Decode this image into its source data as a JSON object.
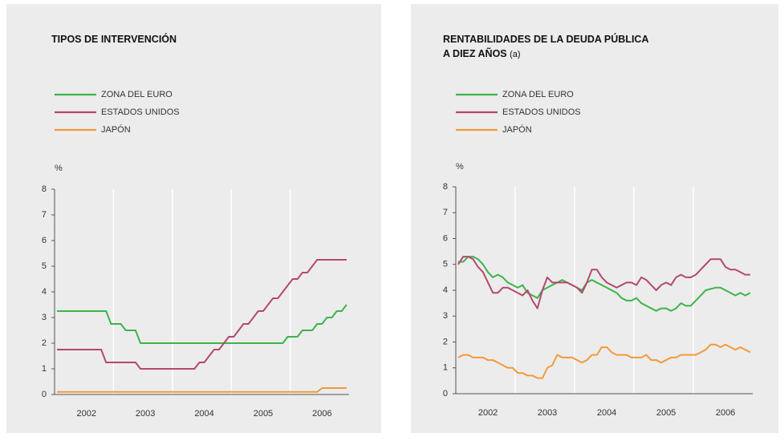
{
  "chart_data": [
    {
      "type": "line",
      "title": [
        "TIPOS DE INTERVENCIÓN"
      ],
      "y_label": "%",
      "categories": [
        null,
        null,
        null,
        null,
        null,
        null,
        "2002",
        null,
        null,
        null,
        null,
        null,
        null,
        null,
        null,
        null,
        null,
        null,
        "2003",
        null,
        null,
        null,
        null,
        null,
        null,
        null,
        null,
        null,
        null,
        null,
        "2004",
        null,
        null,
        null,
        null,
        null,
        null,
        null,
        null,
        null,
        null,
        null,
        "2005",
        null,
        null,
        null,
        null,
        null,
        null,
        null,
        null,
        null,
        null,
        null,
        "2006",
        null,
        null,
        null,
        null,
        null
      ],
      "ylim": [
        0,
        8
      ],
      "yticks": [
        0,
        1,
        2,
        3,
        4,
        5,
        6,
        7,
        8
      ],
      "series": [
        {
          "name": "ZONA DEL EURO",
          "color": "#3db44a",
          "values": [
            3.25,
            3.25,
            3.25,
            3.25,
            3.25,
            3.25,
            3.25,
            3.25,
            3.25,
            3.25,
            3.25,
            2.75,
            2.75,
            2.75,
            2.5,
            2.5,
            2.5,
            2.0,
            2.0,
            2.0,
            2.0,
            2.0,
            2.0,
            2.0,
            2.0,
            2.0,
            2.0,
            2.0,
            2.0,
            2.0,
            2.0,
            2.0,
            2.0,
            2.0,
            2.0,
            2.0,
            2.0,
            2.0,
            2.0,
            2.0,
            2.0,
            2.0,
            2.0,
            2.0,
            2.0,
            2.0,
            2.0,
            2.25,
            2.25,
            2.25,
            2.5,
            2.5,
            2.5,
            2.75,
            2.75,
            3.0,
            3.0,
            3.25,
            3.25,
            3.5
          ]
        },
        {
          "name": "ESTADOS UNIDOS",
          "color": "#b54770",
          "values": [
            1.75,
            1.75,
            1.75,
            1.75,
            1.75,
            1.75,
            1.75,
            1.75,
            1.75,
            1.75,
            1.25,
            1.25,
            1.25,
            1.25,
            1.25,
            1.25,
            1.25,
            1.0,
            1.0,
            1.0,
            1.0,
            1.0,
            1.0,
            1.0,
            1.0,
            1.0,
            1.0,
            1.0,
            1.0,
            1.25,
            1.25,
            1.5,
            1.75,
            1.75,
            2.0,
            2.25,
            2.25,
            2.5,
            2.75,
            2.75,
            3.0,
            3.25,
            3.25,
            3.5,
            3.75,
            3.75,
            4.0,
            4.25,
            4.5,
            4.5,
            4.75,
            4.75,
            5.0,
            5.25,
            5.25,
            5.25,
            5.25,
            5.25,
            5.25,
            5.25
          ]
        },
        {
          "name": "JAPÓN",
          "color": "#f39a3a",
          "values": [
            0.1,
            0.1,
            0.1,
            0.1,
            0.1,
            0.1,
            0.1,
            0.1,
            0.1,
            0.1,
            0.1,
            0.1,
            0.1,
            0.1,
            0.1,
            0.1,
            0.1,
            0.1,
            0.1,
            0.1,
            0.1,
            0.1,
            0.1,
            0.1,
            0.1,
            0.1,
            0.1,
            0.1,
            0.1,
            0.1,
            0.1,
            0.1,
            0.1,
            0.1,
            0.1,
            0.1,
            0.1,
            0.1,
            0.1,
            0.1,
            0.1,
            0.1,
            0.1,
            0.1,
            0.1,
            0.1,
            0.1,
            0.1,
            0.1,
            0.1,
            0.1,
            0.1,
            0.1,
            0.1,
            0.25,
            0.25,
            0.25,
            0.25,
            0.25,
            0.25
          ]
        }
      ]
    },
    {
      "type": "line",
      "title": [
        "RENTABILIDADES DE LA DEUDA PÚBLICA",
        "A DIEZ AÑOS"
      ],
      "title_note": "(a)",
      "y_label": "%",
      "categories": [
        null,
        null,
        null,
        null,
        null,
        null,
        "2002",
        null,
        null,
        null,
        null,
        null,
        null,
        null,
        null,
        null,
        null,
        null,
        "2003",
        null,
        null,
        null,
        null,
        null,
        null,
        null,
        null,
        null,
        null,
        null,
        "2004",
        null,
        null,
        null,
        null,
        null,
        null,
        null,
        null,
        null,
        null,
        null,
        "2005",
        null,
        null,
        null,
        null,
        null,
        null,
        null,
        null,
        null,
        null,
        null,
        "2006",
        null,
        null,
        null,
        null,
        null
      ],
      "ylim": [
        0,
        8
      ],
      "yticks": [
        0,
        1,
        2,
        3,
        4,
        5,
        6,
        7,
        8
      ],
      "series": [
        {
          "name": "ZONA DEL EURO",
          "color": "#3db44a",
          "values": [
            5.1,
            5.1,
            5.3,
            5.3,
            5.2,
            5.0,
            4.7,
            4.5,
            4.6,
            4.5,
            4.3,
            4.2,
            4.1,
            4.2,
            3.9,
            3.8,
            3.7,
            4.0,
            4.1,
            4.2,
            4.3,
            4.4,
            4.3,
            4.2,
            4.1,
            4.0,
            4.3,
            4.4,
            4.3,
            4.2,
            4.1,
            4.0,
            3.9,
            3.7,
            3.6,
            3.6,
            3.7,
            3.5,
            3.4,
            3.3,
            3.2,
            3.3,
            3.3,
            3.2,
            3.3,
            3.5,
            3.4,
            3.4,
            3.6,
            3.8,
            4.0,
            4.05,
            4.1,
            4.1,
            4.0,
            3.9,
            3.8,
            3.9,
            3.8,
            3.9
          ]
        },
        {
          "name": "ESTADOS UNIDOS",
          "color": "#b54770",
          "values": [
            5.0,
            5.3,
            5.3,
            5.2,
            4.9,
            4.7,
            4.3,
            3.9,
            3.9,
            4.1,
            4.1,
            4.0,
            3.9,
            3.8,
            4.0,
            3.6,
            3.3,
            4.0,
            4.5,
            4.3,
            4.3,
            4.3,
            4.3,
            4.2,
            4.1,
            3.9,
            4.3,
            4.8,
            4.8,
            4.5,
            4.3,
            4.2,
            4.1,
            4.2,
            4.3,
            4.3,
            4.2,
            4.5,
            4.4,
            4.2,
            4.0,
            4.2,
            4.3,
            4.2,
            4.5,
            4.6,
            4.5,
            4.5,
            4.6,
            4.8,
            5.0,
            5.2,
            5.2,
            5.2,
            4.9,
            4.8,
            4.8,
            4.7,
            4.6,
            4.6
          ]
        },
        {
          "name": "JAPÓN",
          "color": "#f39a3a",
          "values": [
            1.4,
            1.5,
            1.5,
            1.4,
            1.4,
            1.4,
            1.3,
            1.3,
            1.2,
            1.1,
            1.0,
            1.0,
            0.8,
            0.8,
            0.7,
            0.7,
            0.6,
            0.6,
            1.0,
            1.1,
            1.5,
            1.4,
            1.4,
            1.4,
            1.3,
            1.2,
            1.3,
            1.5,
            1.5,
            1.8,
            1.8,
            1.6,
            1.5,
            1.5,
            1.5,
            1.4,
            1.4,
            1.4,
            1.5,
            1.3,
            1.3,
            1.2,
            1.3,
            1.4,
            1.4,
            1.5,
            1.5,
            1.5,
            1.5,
            1.6,
            1.7,
            1.9,
            1.9,
            1.8,
            1.9,
            1.8,
            1.7,
            1.8,
            1.7,
            1.6
          ]
        }
      ]
    }
  ]
}
